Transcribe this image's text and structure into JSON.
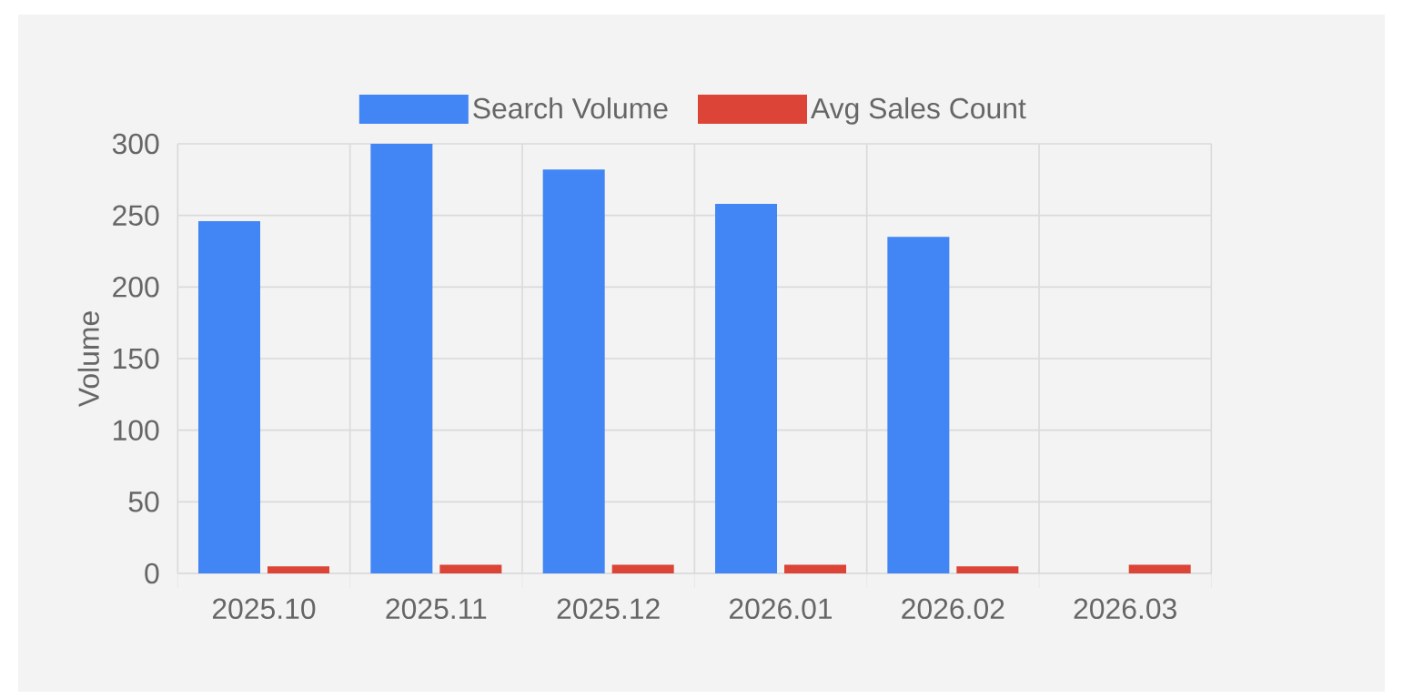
{
  "chart_data": {
    "type": "bar",
    "ylabel": "Volume",
    "categories": [
      "2025.10",
      "2025.11",
      "2025.12",
      "2026.01",
      "2026.02",
      "2026.03"
    ],
    "series": [
      {
        "name": "Search Volume",
        "color": "#4285f4",
        "values": [
          246,
          300,
          282,
          258,
          235,
          null
        ]
      },
      {
        "name": "Avg Sales Count",
        "color": "#db4437",
        "values": [
          5,
          6,
          6,
          6,
          5,
          6
        ]
      }
    ],
    "ylim": [
      0,
      300
    ],
    "yticks": [
      0,
      50,
      100,
      150,
      200,
      250,
      300
    ],
    "grid": true,
    "legend": "top"
  }
}
